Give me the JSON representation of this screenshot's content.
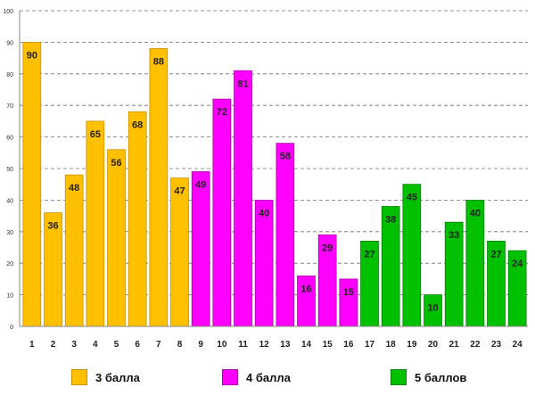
{
  "chart_data": {
    "type": "bar",
    "title": "",
    "xlabel": "",
    "ylabel": "",
    "ylim": [
      0,
      100
    ],
    "yticks": [
      0,
      10,
      20,
      30,
      40,
      50,
      60,
      70,
      80,
      90,
      100
    ],
    "grid": true,
    "categories": [
      "1",
      "2",
      "3",
      "4",
      "5",
      "6",
      "7",
      "8",
      "9",
      "10",
      "11",
      "12",
      "13",
      "14",
      "15",
      "16",
      "17",
      "18",
      "19",
      "20",
      "21",
      "22",
      "23",
      "24"
    ],
    "values": [
      90,
      36,
      48,
      65,
      56,
      68,
      88,
      47,
      49,
      72,
      81,
      40,
      58,
      16,
      29,
      15,
      27,
      38,
      45,
      10,
      33,
      40,
      27,
      24
    ],
    "groups": [
      {
        "name": "3 балла",
        "color": "#ffc000",
        "border": "#c88f00",
        "from": 0,
        "to": 7
      },
      {
        "name": "4 балла",
        "color": "#ff00ff",
        "border": "#a400a4",
        "from": 8,
        "to": 15
      },
      {
        "name": "5 баллов",
        "color": "#00c000",
        "border": "#008000",
        "from": 16,
        "to": 23
      }
    ],
    "legend_position": "bottom"
  }
}
